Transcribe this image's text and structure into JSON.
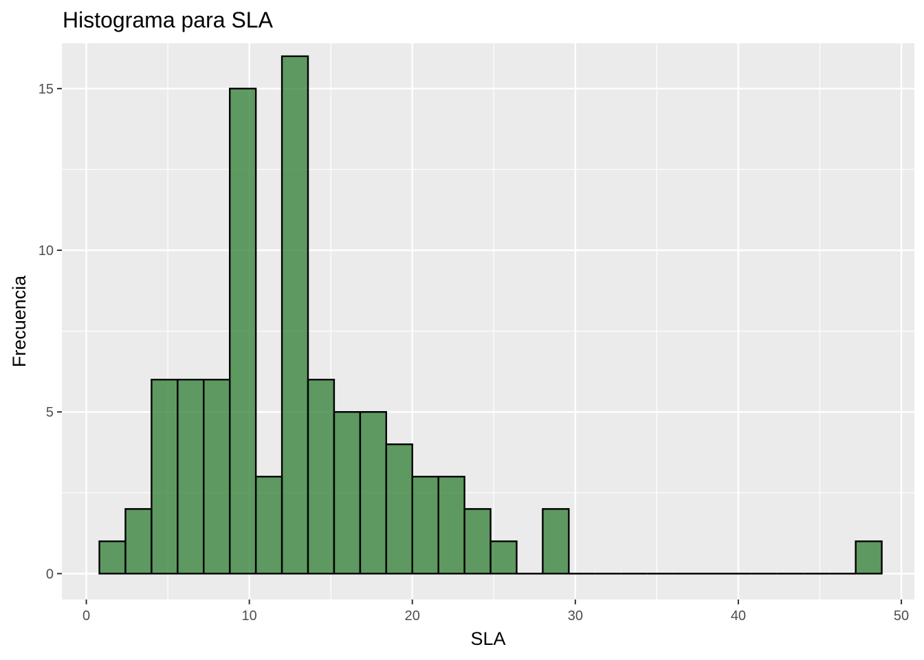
{
  "chart_data": {
    "type": "bar",
    "title": "Histograma para SLA",
    "xlabel": "SLA",
    "ylabel": "Frecuencia",
    "xlim": [
      -1.5,
      50.8
    ],
    "ylim": [
      -0.8,
      16.4
    ],
    "x_ticks": [
      0,
      10,
      20,
      30,
      40,
      50
    ],
    "y_ticks": [
      0,
      5,
      10,
      15
    ],
    "grid": true,
    "legend": "none",
    "bin_width": 1.6,
    "bin_start": 0.8,
    "fill_color": "#2e7d32",
    "fill_opacity": 0.75,
    "edge_color": "#000000",
    "panel_background": "#ebebeb",
    "grid_color": "#ffffff",
    "counts": [
      1,
      2,
      6,
      6,
      6,
      15,
      3,
      16,
      6,
      5,
      5,
      4,
      3,
      3,
      2,
      1,
      0,
      2,
      0,
      0,
      0,
      0,
      0,
      0,
      0,
      0,
      0,
      0,
      0,
      1
    ]
  }
}
